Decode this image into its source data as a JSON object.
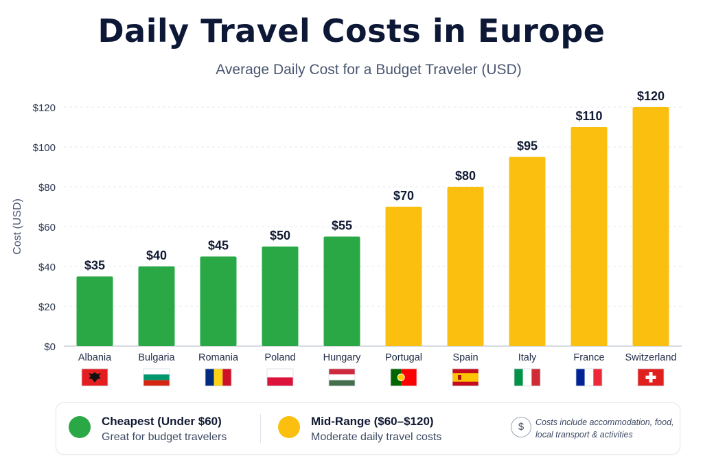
{
  "title": "Daily Travel Costs in Europe",
  "subtitle": "Average Daily Cost for a Budget Traveler (USD)",
  "colors": {
    "cheap": "#2aa845",
    "mid": "#fbbf0f",
    "grid": "#e6e9ee",
    "axis": "#c9ced6"
  },
  "chart_data": {
    "type": "bar",
    "categories": [
      "Albania",
      "Bulgaria",
      "Romania",
      "Poland",
      "Hungary",
      "Portugal",
      "Spain",
      "Italy",
      "France",
      "Switzerland"
    ],
    "values": [
      35,
      40,
      45,
      50,
      55,
      70,
      80,
      95,
      110,
      120
    ],
    "data_labels": [
      "$35",
      "$40",
      "$45",
      "$50",
      "$55",
      "$70",
      "$80",
      "$95",
      "$110",
      "$120"
    ],
    "groups": [
      "cheap",
      "cheap",
      "cheap",
      "cheap",
      "cheap",
      "mid",
      "mid",
      "mid",
      "mid",
      "mid"
    ],
    "flags": [
      "albania-flag-icon",
      "bulgaria-flag-icon",
      "romania-flag-icon",
      "poland-flag-icon",
      "hungary-flag-icon",
      "portugal-flag-icon",
      "spain-flag-icon",
      "italy-flag-icon",
      "france-flag-icon",
      "switzerland-flag-icon"
    ],
    "ylabel": "Cost (USD)",
    "ylim": [
      0,
      120
    ],
    "yticks": [
      0,
      20,
      40,
      60,
      80,
      100,
      120
    ],
    "ytick_labels": [
      "$0",
      "$20",
      "$40",
      "$60",
      "$80",
      "$100",
      "$120"
    ],
    "grid": true
  },
  "legend": {
    "cheap_label": "Cheapest (Under $60)",
    "cheap_desc": "Great for budget travelers",
    "mid_label": "Mid-Range ($60–$120)",
    "mid_desc": "Moderate daily travel costs",
    "note_icon": "dollar-icon",
    "note_symbol": "$",
    "note": "Costs include accommodation, food, local transport & activities"
  }
}
